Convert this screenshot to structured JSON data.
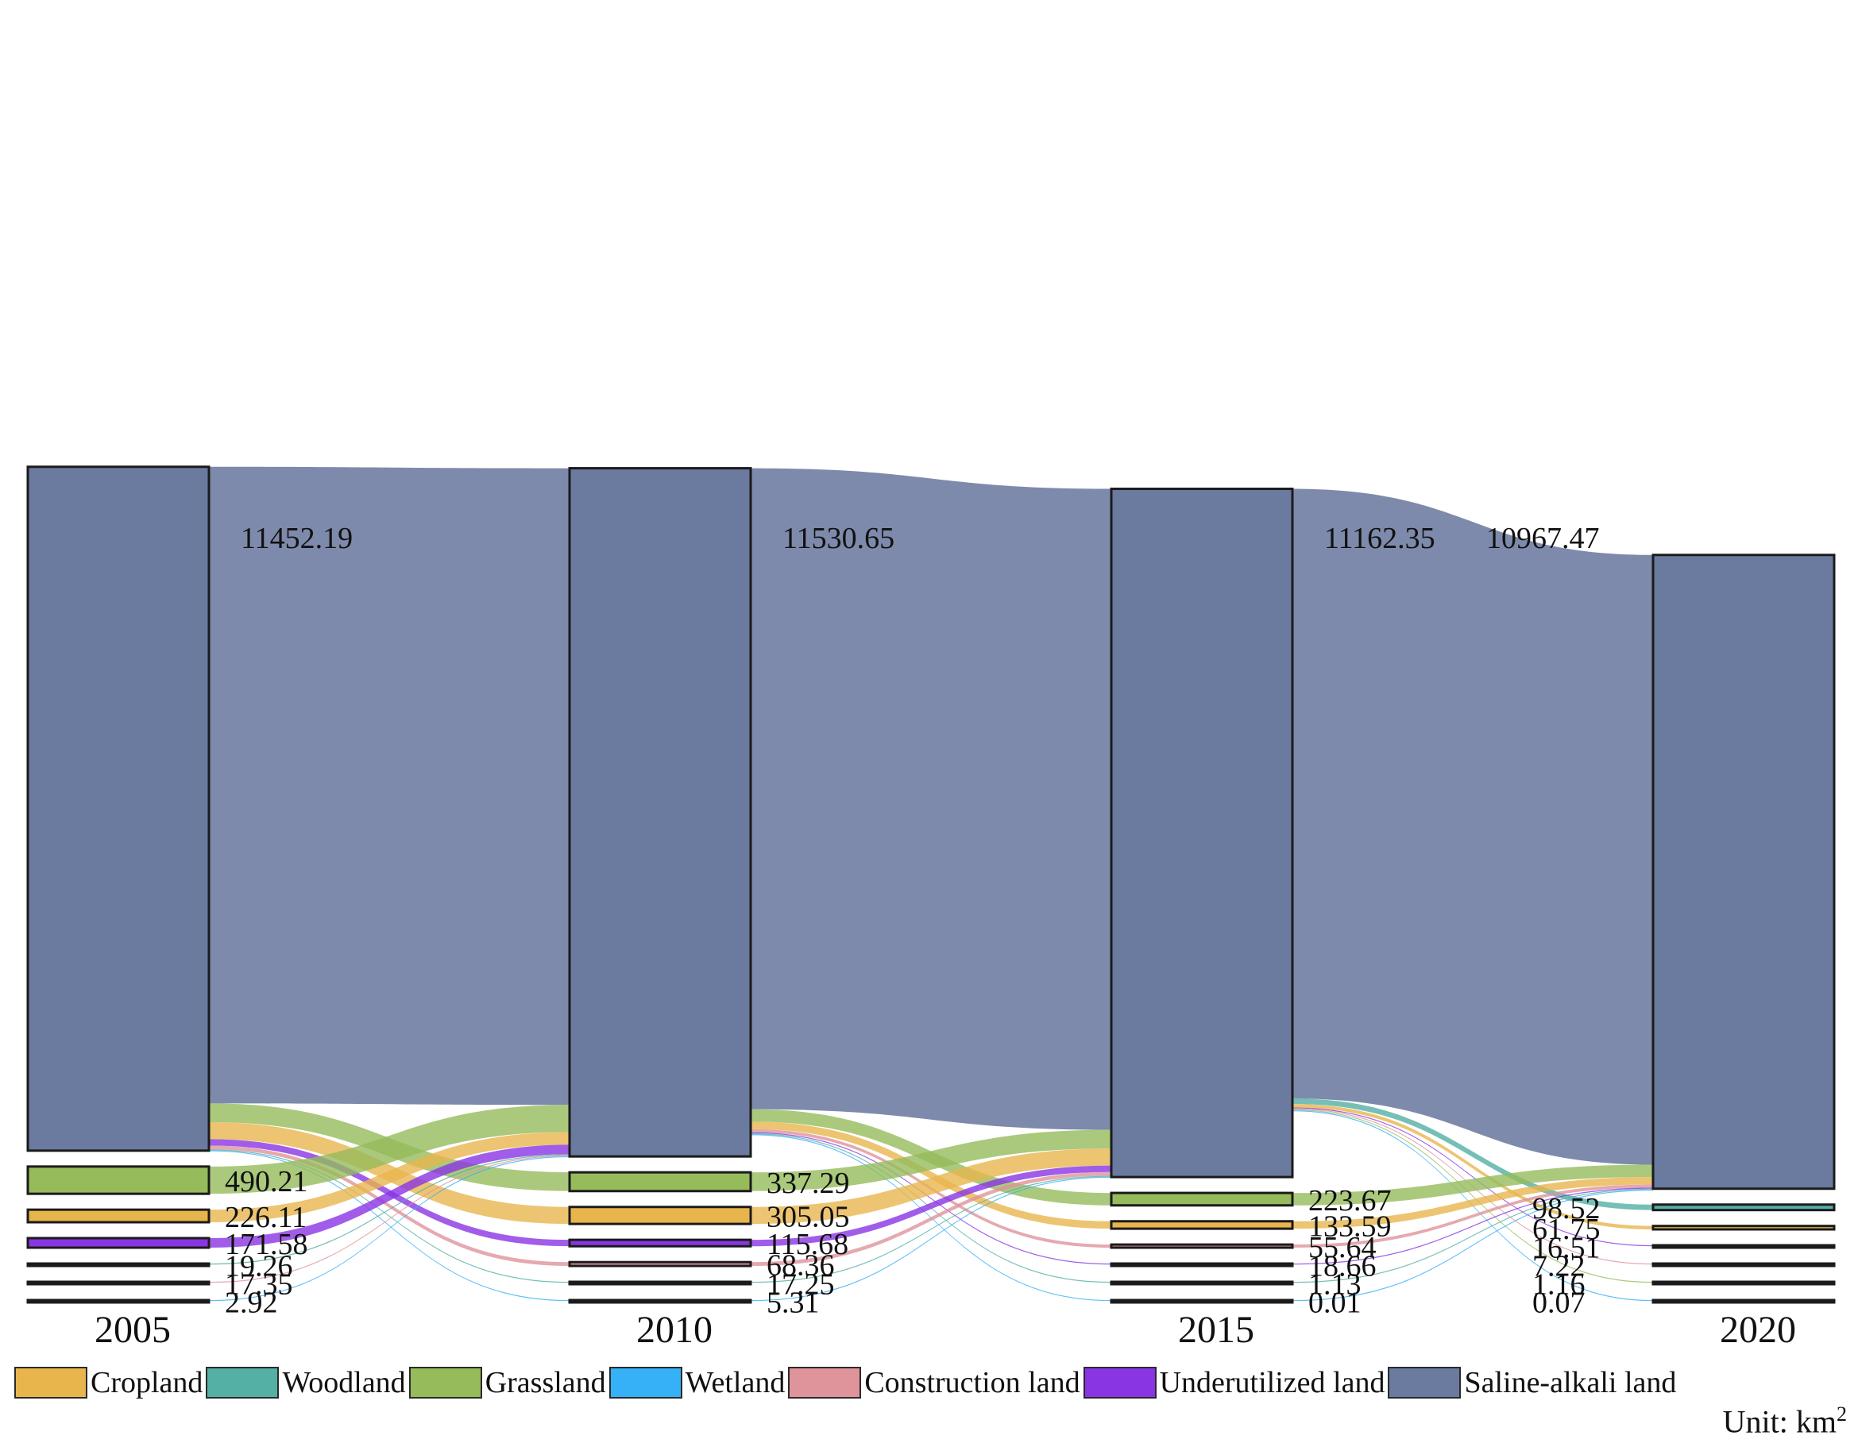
{
  "chart_data": {
    "type": "sankey",
    "title": "",
    "unit": "Unit: km",
    "unit_superscript": "2",
    "years": [
      "2005",
      "2010",
      "2015",
      "2020"
    ],
    "categories": [
      {
        "id": "cropland",
        "name": "Cropland",
        "color": "#E8B54D"
      },
      {
        "id": "woodland",
        "name": "Woodland",
        "color": "#54AFA4"
      },
      {
        "id": "grassland",
        "name": "Grassland",
        "color": "#95BB5B"
      },
      {
        "id": "wetland",
        "name": "Wetland",
        "color": "#36B0F6"
      },
      {
        "id": "construction",
        "name": "Construction land",
        "color": "#DF939B"
      },
      {
        "id": "underutilized",
        "name": "Underutilized land",
        "color": "#8935E4"
      },
      {
        "id": "saline",
        "name": "Saline-alkali land",
        "color": "#6B7A9F"
      }
    ],
    "node_order_by_year": [
      [
        "saline",
        "grassland",
        "cropland",
        "underutilized",
        "woodland",
        "construction",
        "wetland"
      ],
      [
        "saline",
        "grassland",
        "cropland",
        "underutilized",
        "construction",
        "woodland",
        "wetland"
      ],
      [
        "saline",
        "grassland",
        "cropland",
        "construction",
        "underutilized",
        "woodland",
        "wetland"
      ],
      [
        "saline",
        "woodland",
        "cropland",
        "underutilized",
        "construction",
        "grassland",
        "wetland"
      ]
    ],
    "value_labels": [
      {
        "year": "2005",
        "text": "11452.19",
        "category": "saline"
      },
      {
        "year": "2005",
        "text": "490.21",
        "category": "grassland"
      },
      {
        "year": "2005",
        "text": "226.11",
        "category": "cropland"
      },
      {
        "year": "2005",
        "text": "171.58",
        "category": "underutilized"
      },
      {
        "year": "2005",
        "text": "19.26",
        "category": "woodland"
      },
      {
        "year": "2005",
        "text": "17.35",
        "category": "construction"
      },
      {
        "year": "2005",
        "text": "2.92",
        "category": "wetland"
      },
      {
        "year": "2010",
        "text": "11530.65",
        "category": "saline"
      },
      {
        "year": "2010",
        "text": "337.29",
        "category": "grassland"
      },
      {
        "year": "2010",
        "text": "305.05",
        "category": "cropland"
      },
      {
        "year": "2010",
        "text": "115.68",
        "category": "underutilized"
      },
      {
        "year": "2010",
        "text": "68.36",
        "category": "construction"
      },
      {
        "year": "2010",
        "text": "17.25",
        "category": "woodland"
      },
      {
        "year": "2010",
        "text": "5.31",
        "category": "wetland"
      },
      {
        "year": "2015",
        "text": "11162.35",
        "category": "saline"
      },
      {
        "year": "2015",
        "text": "223.67",
        "category": "grassland"
      },
      {
        "year": "2015",
        "text": "133.59",
        "category": "cropland"
      },
      {
        "year": "2015",
        "text": "55.64",
        "category": "construction"
      },
      {
        "year": "2015",
        "text": "18.66",
        "category": "underutilized"
      },
      {
        "year": "2015",
        "text": "1.13",
        "category": "woodland"
      },
      {
        "year": "2015",
        "text": "0.01",
        "category": "wetland"
      },
      {
        "year": "2020",
        "text": "10967.47",
        "category": "saline"
      },
      {
        "year": "2020",
        "text": "98.52",
        "category": "woodland"
      },
      {
        "year": "2020",
        "text": "61.75",
        "category": "cropland"
      },
      {
        "year": "2020",
        "text": "16.51",
        "category": "underutilized"
      },
      {
        "year": "2020",
        "text": "7.22",
        "category": "construction"
      },
      {
        "year": "2020",
        "text": "1.16",
        "category": "grassland"
      },
      {
        "year": "2020",
        "text": "0.07",
        "category": "wetland"
      }
    ],
    "flow_groups": [
      {
        "from_year": "2005",
        "to_year": "2010",
        "flows": [
          {
            "source": "saline",
            "target": "saline",
            "value": 11452.19
          },
          {
            "source": "saline",
            "target": "grassland",
            "value": 337.29
          },
          {
            "source": "saline",
            "target": "cropland",
            "value": 305.05
          },
          {
            "source": "saline",
            "target": "underutilized",
            "value": 115.68
          },
          {
            "source": "saline",
            "target": "construction",
            "value": 68.36
          },
          {
            "source": "saline",
            "target": "woodland",
            "value": 17.25
          },
          {
            "source": "saline",
            "target": "wetland",
            "value": 5.31
          },
          {
            "source": "grassland",
            "target": "saline",
            "value": 490.21
          },
          {
            "source": "cropland",
            "target": "saline",
            "value": 226.11
          },
          {
            "source": "underutilized",
            "target": "saline",
            "value": 171.58
          },
          {
            "source": "woodland",
            "target": "saline",
            "value": 19.26
          },
          {
            "source": "construction",
            "target": "saline",
            "value": 17.35
          },
          {
            "source": "wetland",
            "target": "saline",
            "value": 2.92
          }
        ]
      },
      {
        "from_year": "2010",
        "to_year": "2015",
        "flows": [
          {
            "source": "saline",
            "target": "saline",
            "value": 11530.65
          },
          {
            "source": "saline",
            "target": "grassland",
            "value": 223.67
          },
          {
            "source": "saline",
            "target": "cropland",
            "value": 133.59
          },
          {
            "source": "saline",
            "target": "construction",
            "value": 55.64
          },
          {
            "source": "saline",
            "target": "underutilized",
            "value": 18.66
          },
          {
            "source": "saline",
            "target": "woodland",
            "value": 1.13
          },
          {
            "source": "saline",
            "target": "wetland",
            "value": 0.01
          },
          {
            "source": "grassland",
            "target": "saline",
            "value": 337.29
          },
          {
            "source": "cropland",
            "target": "saline",
            "value": 305.05
          },
          {
            "source": "underutilized",
            "target": "saline",
            "value": 115.68
          },
          {
            "source": "construction",
            "target": "saline",
            "value": 68.36
          },
          {
            "source": "woodland",
            "target": "saline",
            "value": 17.25
          },
          {
            "source": "wetland",
            "target": "saline",
            "value": 5.31
          }
        ]
      },
      {
        "from_year": "2015",
        "to_year": "2020",
        "flows": [
          {
            "source": "saline",
            "target": "saline",
            "value": 10967.47
          },
          {
            "source": "saline",
            "target": "woodland",
            "value": 98.52
          },
          {
            "source": "saline",
            "target": "cropland",
            "value": 61.75
          },
          {
            "source": "saline",
            "target": "underutilized",
            "value": 16.51
          },
          {
            "source": "saline",
            "target": "construction",
            "value": 7.22
          },
          {
            "source": "saline",
            "target": "grassland",
            "value": 1.16
          },
          {
            "source": "saline",
            "target": "wetland",
            "value": 0.07
          },
          {
            "source": "grassland",
            "target": "saline",
            "value": 223.67
          },
          {
            "source": "cropland",
            "target": "saline",
            "value": 133.59
          },
          {
            "source": "construction",
            "target": "saline",
            "value": 55.64
          },
          {
            "source": "underutilized",
            "target": "saline",
            "value": 18.66
          },
          {
            "source": "woodland",
            "target": "saline",
            "value": 1.13
          },
          {
            "source": "wetland",
            "target": "saline",
            "value": 0.01
          }
        ]
      }
    ]
  }
}
